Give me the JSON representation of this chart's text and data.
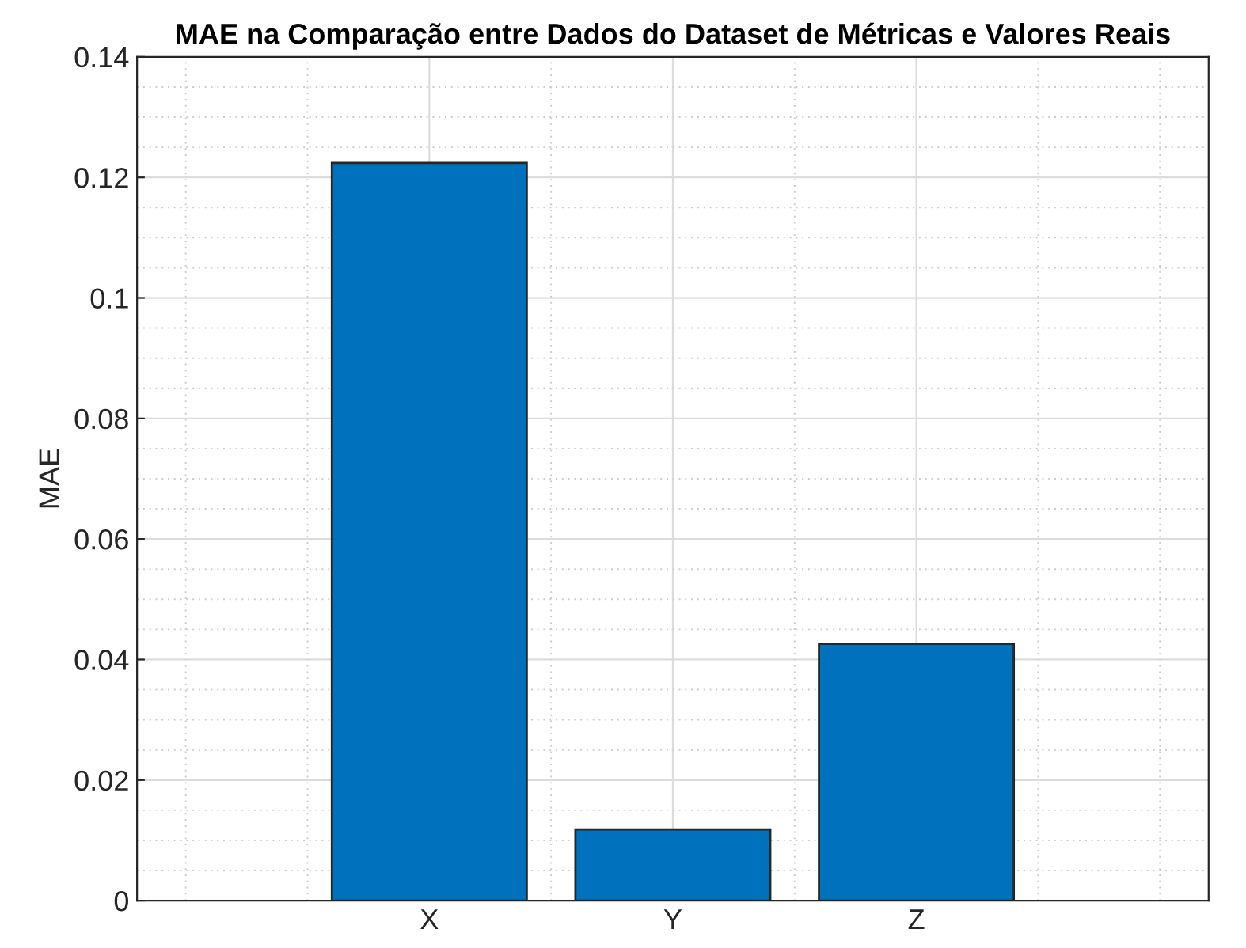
{
  "chart_data": {
    "type": "bar",
    "title": "MAE na Comparação entre Dados do Dataset de Métricas e Valores Reais",
    "ylabel": "MAE",
    "categories": [
      "X",
      "Y",
      "Z"
    ],
    "values": [
      0.1224,
      0.0118,
      0.0426
    ],
    "color": "#0072bd",
    "ylim": [
      0,
      0.14
    ],
    "yticks": [
      0,
      0.02,
      0.04,
      0.06,
      0.08,
      0.1,
      0.12,
      0.14
    ],
    "grid": true
  }
}
